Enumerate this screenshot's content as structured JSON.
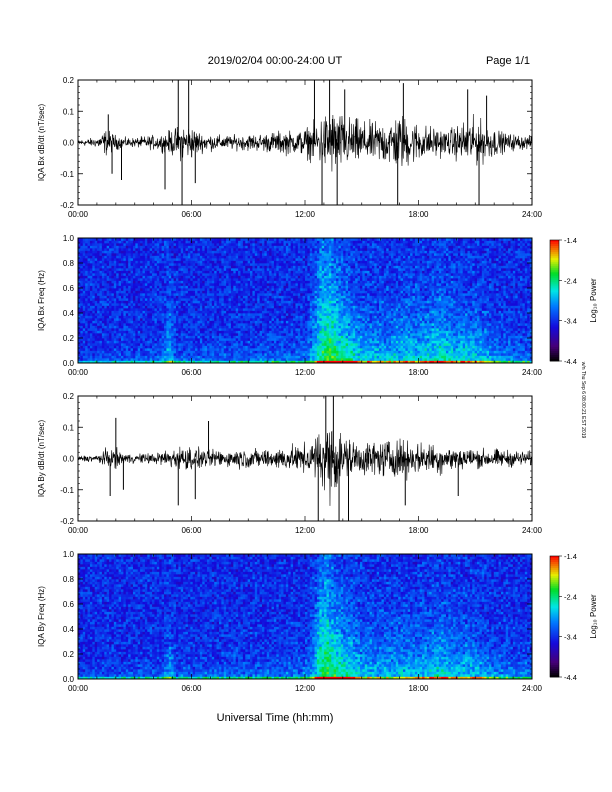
{
  "header": {
    "title": "2019/02/04  00:00-24:00 UT",
    "page": "Page 1/1"
  },
  "side_stamp": "w/n Thu Sep 6 08:00:21 EST 2019",
  "chart_data": [
    {
      "type": "line",
      "ylabel": "IQA Bx dB/dt (nT/sec)",
      "ylim": [
        -0.2,
        0.2
      ],
      "yticks": [
        "0.2",
        "0.1",
        "0.0",
        "-0.1",
        "-0.2"
      ],
      "xlim": [
        0,
        24
      ],
      "xticks": [
        "00:00",
        "06:00",
        "12:00",
        "18:00",
        "24:00"
      ],
      "envelope": {
        "hours": [
          0,
          1,
          1.5,
          2,
          2.5,
          3,
          3.5,
          4,
          4.5,
          5,
          5.5,
          6,
          6.5,
          7,
          7.5,
          8,
          8.5,
          9,
          9.5,
          10,
          10.5,
          11,
          11.5,
          12,
          12.5,
          13,
          13.5,
          14,
          14.5,
          15,
          15.5,
          16,
          16.5,
          17,
          17.5,
          18,
          18.5,
          19,
          19.5,
          20,
          20.5,
          21,
          21.5,
          22,
          22.5,
          23,
          23.5,
          24
        ],
        "amplitude": [
          0.012,
          0.02,
          0.055,
          0.03,
          0.02,
          0.02,
          0.025,
          0.03,
          0.035,
          0.055,
          0.075,
          0.07,
          0.04,
          0.035,
          0.03,
          0.03,
          0.03,
          0.035,
          0.035,
          0.04,
          0.045,
          0.05,
          0.045,
          0.06,
          0.08,
          0.12,
          0.14,
          0.11,
          0.1,
          0.09,
          0.08,
          0.09,
          0.1,
          0.12,
          0.1,
          0.08,
          0.07,
          0.06,
          0.05,
          0.07,
          0.09,
          0.1,
          0.08,
          0.06,
          0.04,
          0.035,
          0.03,
          0.025
        ]
      },
      "spikes": [
        {
          "hour": 1.6,
          "value": 0.09
        },
        {
          "hour": 1.8,
          "value": -0.1
        },
        {
          "hour": 2.3,
          "value": -0.12
        },
        {
          "hour": 4.6,
          "value": -0.15
        },
        {
          "hour": 5.3,
          "value": 0.2
        },
        {
          "hour": 5.5,
          "value": -0.2
        },
        {
          "hour": 5.85,
          "value": 0.2
        },
        {
          "hour": 6.2,
          "value": -0.13
        },
        {
          "hour": 12.5,
          "value": 0.2
        },
        {
          "hour": 12.9,
          "value": -0.2
        },
        {
          "hour": 13.3,
          "value": 0.2
        },
        {
          "hour": 13.7,
          "value": -0.2
        },
        {
          "hour": 14.1,
          "value": 0.17
        },
        {
          "hour": 16.9,
          "value": -0.2
        },
        {
          "hour": 17.2,
          "value": 0.19
        },
        {
          "hour": 20.6,
          "value": 0.17
        },
        {
          "hour": 21.2,
          "value": -0.2
        },
        {
          "hour": 21.6,
          "value": 0.15
        }
      ]
    },
    {
      "type": "heatmap",
      "ylabel": "IQA Bx Freq (Hz)",
      "ylim": [
        0.0,
        1.0
      ],
      "yticks": [
        "1.0",
        "0.8",
        "0.6",
        "0.4",
        "0.2",
        "0.0"
      ],
      "xlim": [
        0,
        24
      ],
      "xticks": [
        "00:00",
        "06:00",
        "12:00",
        "18:00",
        "24:00"
      ],
      "colorbar": {
        "label": "Log₁₀ Power",
        "range": [
          -4.4,
          -1.4
        ],
        "ticks": [
          "-1.4",
          "-2.4",
          "-3.4",
          "-4.4"
        ]
      },
      "activity": {
        "hours": [
          0,
          2,
          4.4,
          4.8,
          5.2,
          8,
          12,
          12.4,
          12.8,
          13.2,
          13.6,
          14,
          14.5,
          15,
          16,
          17,
          18,
          18.5,
          19.2,
          20,
          20.5,
          21.5,
          22,
          24
        ],
        "strength": [
          0.15,
          0.2,
          0.25,
          0.55,
          0.25,
          0.25,
          0.3,
          0.45,
          0.85,
          1.0,
          0.95,
          0.85,
          0.75,
          0.6,
          0.55,
          0.6,
          0.6,
          0.65,
          0.75,
          0.6,
          0.7,
          0.55,
          0.4,
          0.3
        ],
        "height_hz": [
          0.05,
          0.08,
          0.1,
          0.4,
          0.12,
          0.12,
          0.15,
          0.35,
          0.7,
          0.75,
          0.55,
          0.45,
          0.38,
          0.3,
          0.3,
          0.32,
          0.33,
          0.34,
          0.4,
          0.3,
          0.3,
          0.25,
          0.2,
          0.15
        ]
      }
    },
    {
      "type": "line",
      "ylabel": "IQA By dB/dt (nT/sec)",
      "ylim": [
        -0.2,
        0.2
      ],
      "yticks": [
        "0.2",
        "0.1",
        "0.0",
        "-0.1",
        "-0.2"
      ],
      "xlim": [
        0,
        24
      ],
      "xticks": [
        "00:00",
        "06:00",
        "12:00",
        "18:00",
        "24:00"
      ],
      "envelope": {
        "hours": [
          0,
          1,
          1.5,
          2,
          2.5,
          3,
          3.5,
          4,
          4.5,
          5,
          5.5,
          6,
          6.5,
          7,
          7.5,
          8,
          8.5,
          9,
          9.5,
          10,
          10.5,
          11,
          11.5,
          12,
          12.5,
          13,
          13.5,
          14,
          14.5,
          15,
          15.5,
          16,
          16.5,
          17,
          17.5,
          18,
          18.5,
          19,
          19.5,
          20,
          20.5,
          21,
          21.5,
          22,
          22.5,
          23,
          23.5,
          24
        ],
        "amplitude": [
          0.012,
          0.015,
          0.04,
          0.04,
          0.02,
          0.02,
          0.02,
          0.025,
          0.03,
          0.045,
          0.05,
          0.05,
          0.04,
          0.035,
          0.035,
          0.035,
          0.04,
          0.04,
          0.04,
          0.04,
          0.045,
          0.05,
          0.05,
          0.06,
          0.08,
          0.14,
          0.16,
          0.1,
          0.08,
          0.07,
          0.07,
          0.07,
          0.08,
          0.08,
          0.07,
          0.06,
          0.06,
          0.07,
          0.05,
          0.05,
          0.05,
          0.04,
          0.04,
          0.04,
          0.035,
          0.035,
          0.03,
          0.03
        ]
      },
      "spikes": [
        {
          "hour": 1.7,
          "value": -0.12
        },
        {
          "hour": 2.0,
          "value": 0.13
        },
        {
          "hour": 2.4,
          "value": -0.1
        },
        {
          "hour": 5.3,
          "value": -0.15
        },
        {
          "hour": 6.2,
          "value": -0.13
        },
        {
          "hour": 6.9,
          "value": 0.12
        },
        {
          "hour": 12.7,
          "value": -0.2
        },
        {
          "hour": 13.1,
          "value": 0.2
        },
        {
          "hour": 13.5,
          "value": 0.2
        },
        {
          "hour": 13.8,
          "value": -0.2
        },
        {
          "hour": 14.3,
          "value": -0.2
        },
        {
          "hour": 17.3,
          "value": -0.15
        },
        {
          "hour": 20.1,
          "value": -0.12
        }
      ]
    },
    {
      "type": "heatmap",
      "ylabel": "IQA By Freq (Hz)",
      "ylim": [
        0.0,
        1.0
      ],
      "yticks": [
        "1.0",
        "0.8",
        "0.6",
        "0.4",
        "0.2",
        "0.0"
      ],
      "xlim": [
        0,
        24
      ],
      "xticks": [
        "00:00",
        "06:00",
        "12:00",
        "18:00",
        "24:00"
      ],
      "colorbar": {
        "label": "Log₁₀ Power",
        "range": [
          -4.4,
          -1.4
        ],
        "ticks": [
          "-1.4",
          "-2.4",
          "-3.4",
          "-4.4"
        ]
      },
      "activity": {
        "hours": [
          0,
          2,
          4.4,
          4.8,
          5.2,
          8,
          12,
          12.4,
          12.8,
          13.2,
          13.6,
          14,
          14.5,
          15,
          16,
          17,
          18,
          18.5,
          19.2,
          20,
          20.5,
          21.5,
          22,
          24
        ],
        "strength": [
          0.15,
          0.2,
          0.25,
          0.5,
          0.25,
          0.25,
          0.3,
          0.45,
          0.85,
          1.0,
          0.9,
          0.8,
          0.7,
          0.55,
          0.5,
          0.55,
          0.55,
          0.6,
          0.7,
          0.55,
          0.6,
          0.5,
          0.4,
          0.3
        ],
        "height_hz": [
          0.05,
          0.08,
          0.1,
          0.3,
          0.1,
          0.12,
          0.15,
          0.35,
          0.7,
          0.7,
          0.5,
          0.4,
          0.35,
          0.3,
          0.3,
          0.3,
          0.3,
          0.3,
          0.35,
          0.28,
          0.28,
          0.22,
          0.18,
          0.15
        ]
      }
    }
  ],
  "xlabel": "Universal Time (hh:mm)"
}
